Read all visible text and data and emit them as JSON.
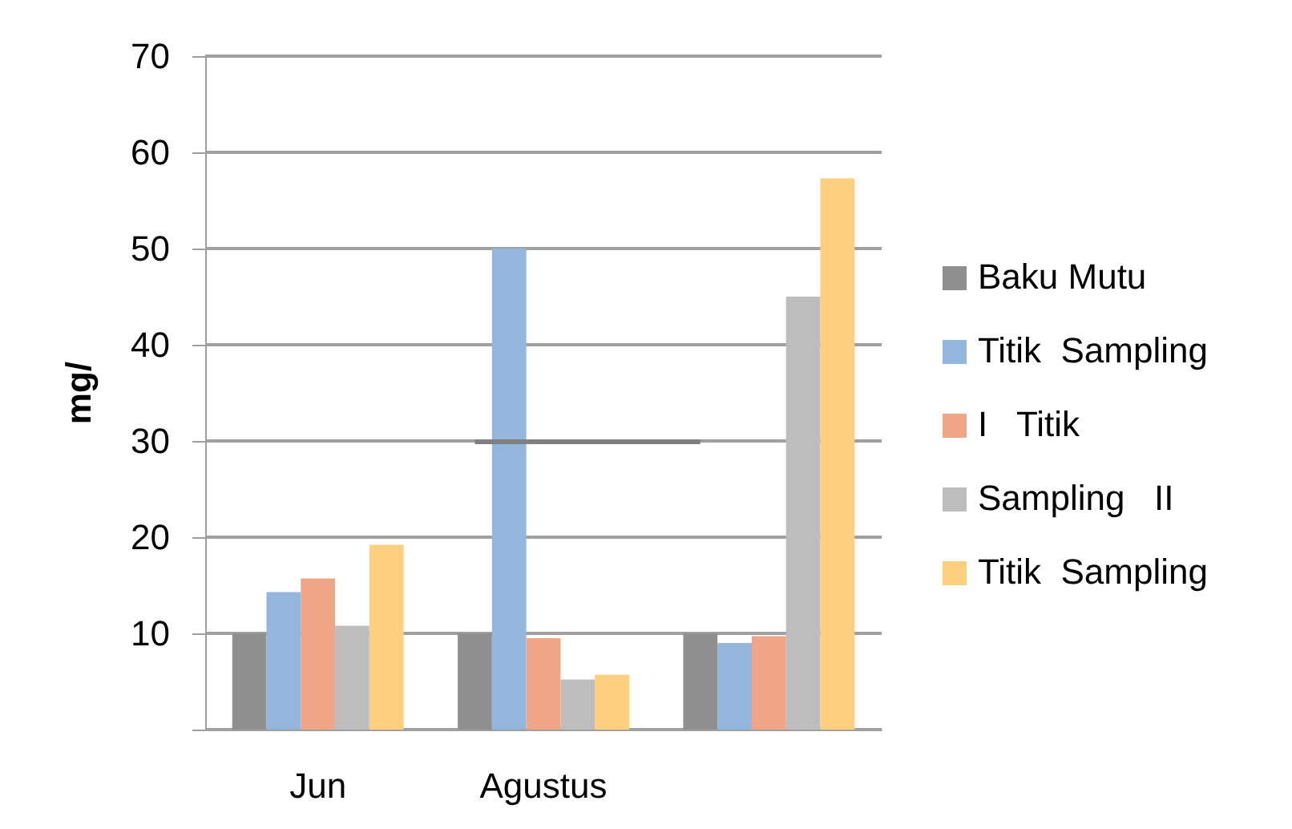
{
  "chart_data": {
    "type": "bar",
    "ylabel": "mg/",
    "categories": [
      "Jun",
      "Agustus",
      null
    ],
    "series": [
      {
        "name": "Baku Mutu",
        "color": "#8f8f8f",
        "values": [
          10,
          10,
          10
        ]
      },
      {
        "name": "Titik  Sampling",
        "color": "#95b6dc",
        "values": [
          14.3,
          50,
          9
        ]
      },
      {
        "name": "I   Titik",
        "color": "#efa586",
        "values": [
          15.7,
          9.5,
          9.7
        ]
      },
      {
        "name": "Sampling   II",
        "color": "#bdbdbd",
        "values": [
          10.8,
          5.2,
          45
        ]
      },
      {
        "name": "Titik  Sampling",
        "color": "#fdcf81",
        "values": [
          19.2,
          5.7,
          57.3
        ]
      }
    ],
    "ylim": [
      0,
      70
    ],
    "yticks": [
      {
        "value": 0,
        "label": null
      },
      10,
      20,
      30,
      40,
      50,
      60,
      70
    ],
    "ref_lines": [
      {
        "axis": "y",
        "value": 30,
        "color": "#808080"
      }
    ],
    "grid": "y",
    "legend": "right"
  }
}
